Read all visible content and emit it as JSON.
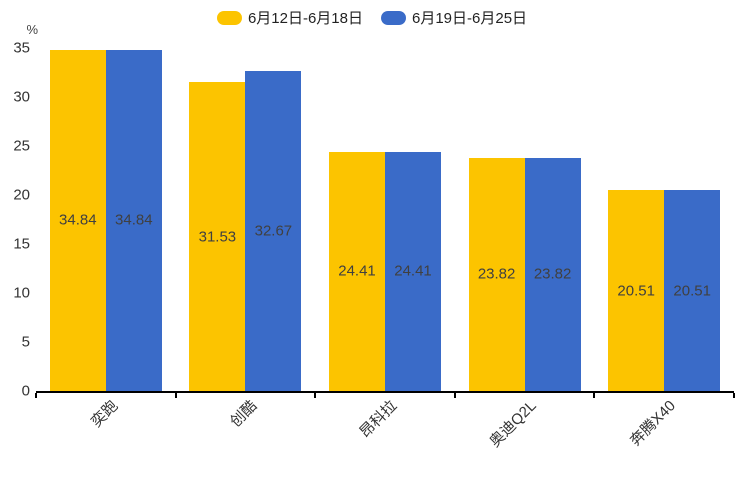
{
  "chart_data": {
    "type": "bar",
    "title": "",
    "categories": [
      "奕跑",
      "创酷",
      "昂科拉",
      "奥迪Q2L",
      "奔腾X40"
    ],
    "series": [
      {
        "name": "6月12日-6月18日",
        "color": "#FCC400",
        "values": [
          34.84,
          31.53,
          24.41,
          23.82,
          20.51
        ]
      },
      {
        "name": "6月19日-6月25日",
        "color": "#3A6BC8",
        "values": [
          34.84,
          32.67,
          24.41,
          23.82,
          20.51
        ]
      }
    ],
    "xlabel": "",
    "ylabel": "%",
    "ylim": [
      0,
      35
    ],
    "yticks": [
      0,
      5,
      10,
      15,
      20,
      25,
      30,
      35
    ],
    "grid": false,
    "legend_position": "top",
    "value_labels": true,
    "value_label_color": "#404040",
    "axis_color": "#000000",
    "tick_text_color": "#333333"
  }
}
